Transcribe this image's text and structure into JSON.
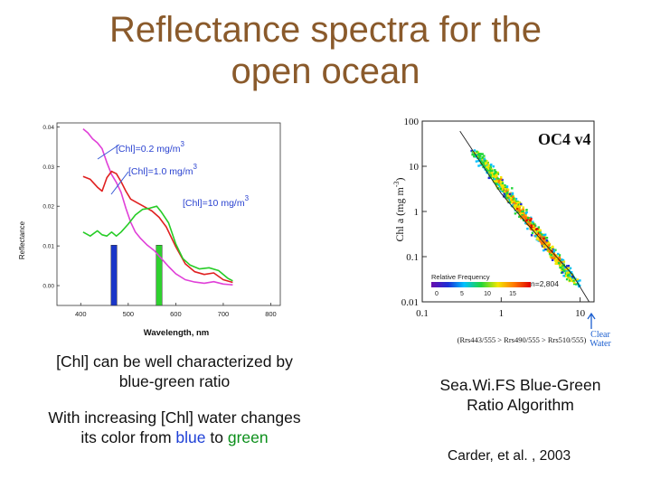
{
  "title": {
    "line1": "Reflectance spectra for the",
    "line2": "open ocean"
  },
  "spectra_plot": {
    "xlabel": "Wavelength, nm",
    "ylabel": "Reflectance",
    "labels": [
      "[Chl]=0.2 mg/m",
      "[Chl]=1.0 mg/m",
      "[Chl]=10 mg/m"
    ],
    "superscript": "3",
    "colors": {
      "chl_0_2": "#e040d8",
      "chl_1_0": "#e02020",
      "chl_10": "#26cc26",
      "blue_bar": "#1a36c8",
      "green_bar": "#2fd12f"
    }
  },
  "oc4_plot": {
    "title": "OC4 v4",
    "ylabel": "Chl a (mg m",
    "ylabel_exp": "-3",
    "ylabel_end": ")",
    "legend_label": "Relative Frequency",
    "n_label": "n=2,804",
    "colorbar_ticks": [
      "0",
      "5",
      "10",
      "15"
    ],
    "clear_water": [
      "Clear",
      "Water"
    ],
    "xaxis_formula": "(Rrs443/555 > Rrs490/555 > Rrs510/555)"
  },
  "captions": {
    "left1": "[Chl] can be well characterized by blue-green ratio",
    "left2_a": "With increasing [Chl] water changes its color from ",
    "left2_blue": "blue",
    "left2_b": " to ",
    "left2_green": "green",
    "right": "Sea.Wi.FS Blue-Green Ratio Algorithm",
    "credit": "Carder, et al. , 2003"
  },
  "chart_data": [
    {
      "type": "line",
      "title": "",
      "xlabel": "Wavelength, nm",
      "ylabel": "Reflectance",
      "xlim": [
        350,
        820
      ],
      "ylim": [
        -0.005,
        0.041
      ],
      "xticks": [
        400,
        500,
        600,
        700,
        800
      ],
      "yticks": [
        0.0,
        0.01,
        0.02,
        0.03,
        0.04
      ],
      "ytick_labels": [
        "0.00",
        "0.01",
        "0.02",
        "0.03",
        "0.04"
      ],
      "series": [
        {
          "name": "[Chl]=0.2 mg/m3",
          "color": "#e040d8",
          "x": [
            405,
            415,
            425,
            435,
            445,
            455,
            465,
            475,
            485,
            495,
            505,
            515,
            525,
            540,
            555,
            570,
            585,
            600,
            620,
            640,
            660,
            680,
            700,
            720
          ],
          "y": [
            0.0395,
            0.0385,
            0.037,
            0.036,
            0.0345,
            0.031,
            0.028,
            0.026,
            0.0235,
            0.0195,
            0.016,
            0.0135,
            0.012,
            0.0102,
            0.0088,
            0.0068,
            0.0048,
            0.003,
            0.0015,
            0.0009,
            0.0006,
            0.001,
            0.0004,
            0.0002
          ]
        },
        {
          "name": "[Chl]=1.0 mg/m3",
          "color": "#e02020",
          "x": [
            405,
            420,
            435,
            445,
            455,
            465,
            475,
            485,
            495,
            505,
            520,
            535,
            550,
            565,
            580,
            600,
            620,
            640,
            660,
            680,
            700,
            720
          ],
          "y": [
            0.0275,
            0.0268,
            0.0248,
            0.0238,
            0.0272,
            0.0288,
            0.0282,
            0.0262,
            0.0238,
            0.0218,
            0.0208,
            0.0198,
            0.0188,
            0.0172,
            0.0148,
            0.0098,
            0.0055,
            0.0035,
            0.0028,
            0.0032,
            0.0015,
            0.0008
          ]
        },
        {
          "name": "[Chl]=10 mg/m3",
          "color": "#26cc26",
          "x": [
            405,
            420,
            435,
            445,
            455,
            465,
            475,
            485,
            500,
            515,
            530,
            545,
            560,
            570,
            585,
            600,
            615,
            630,
            650,
            670,
            690,
            710,
            720
          ],
          "y": [
            0.0135,
            0.0125,
            0.0138,
            0.0128,
            0.0125,
            0.0135,
            0.0125,
            0.0135,
            0.0155,
            0.0178,
            0.0192,
            0.0195,
            0.02,
            0.0185,
            0.0158,
            0.0105,
            0.0068,
            0.0052,
            0.0042,
            0.0045,
            0.0038,
            0.0018,
            0.0012
          ]
        }
      ],
      "bars": [
        {
          "x": 470,
          "color": "#1a36c8",
          "y_top": 0.0102
        },
        {
          "x": 565,
          "color": "#2fd12f",
          "y_top": 0.0102
        }
      ]
    },
    {
      "type": "scatter",
      "title": "OC4 v4",
      "xlabel": "(Rrs443/555 > Rrs490/555 > Rrs510/555)",
      "ylabel": "Chl a (mg m-3)",
      "xscale": "log",
      "yscale": "log",
      "xlim": [
        0.1,
        15
      ],
      "ylim": [
        0.01,
        100
      ],
      "xticks": [
        0.1,
        1,
        10
      ],
      "yticks": [
        0.01,
        0.1,
        1,
        10,
        100
      ],
      "fit_line": {
        "x": [
          0.3,
          1,
          2,
          5,
          8,
          13
        ],
        "y": [
          60,
          2.5,
          0.6,
          0.1,
          0.04,
          0.01
        ]
      }
    }
  ]
}
